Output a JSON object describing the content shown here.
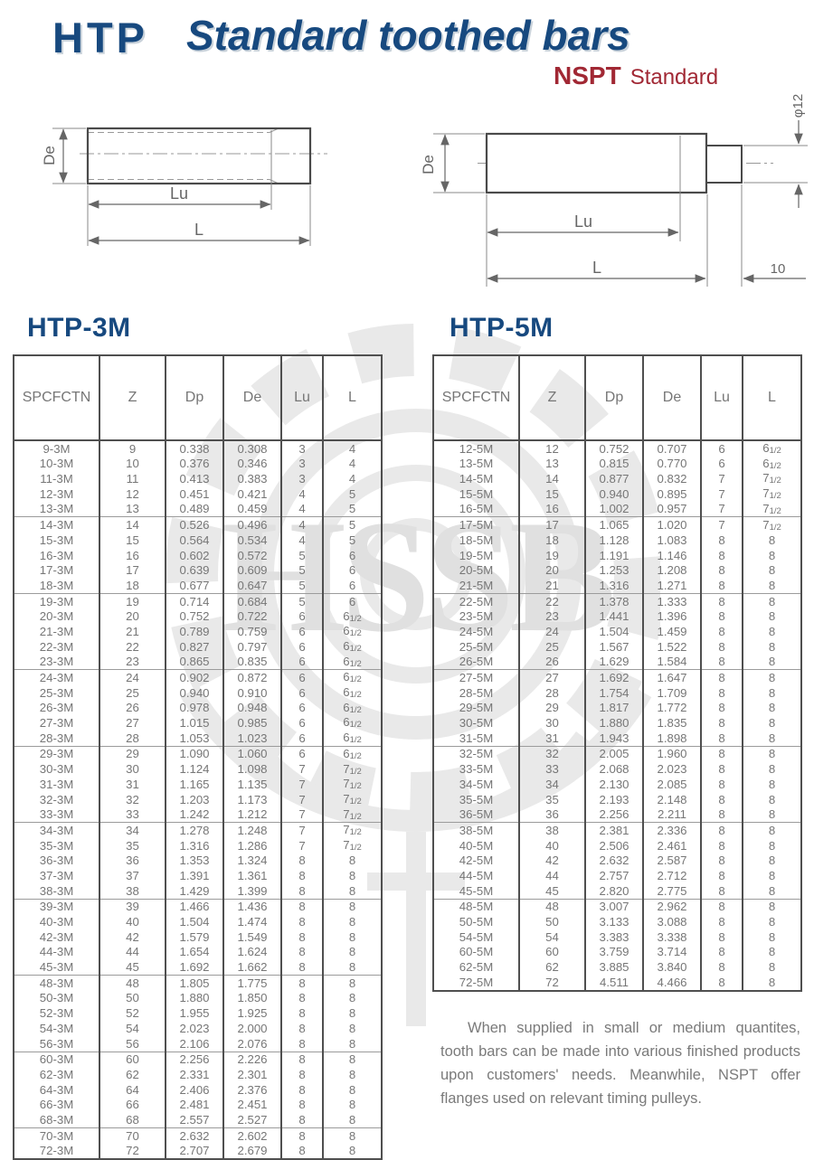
{
  "page": {
    "brand": "HTP",
    "title": "Standard toothed bars",
    "standard_brand": "NSPT",
    "standard_label": "Standard"
  },
  "drawings": {
    "left": {
      "de": "De",
      "lu": "Lu",
      "l": "L"
    },
    "right": {
      "de": "De",
      "lu": "Lu",
      "l": "L",
      "diameter": "φ12",
      "tail": "10"
    }
  },
  "tables": [
    {
      "title": "HTP-3M",
      "headers": [
        "SPCFCTN",
        "Z",
        "Dp",
        "De",
        "Lu",
        "L"
      ],
      "groups": [
        [
          [
            "9-3M",
            "9",
            "0.338",
            "0.308",
            "3",
            "4"
          ],
          [
            "10-3M",
            "10",
            "0.376",
            "0.346",
            "3",
            "4"
          ],
          [
            "11-3M",
            "11",
            "0.413",
            "0.383",
            "3",
            "4"
          ],
          [
            "12-3M",
            "12",
            "0.451",
            "0.421",
            "4",
            "5"
          ],
          [
            "13-3M",
            "13",
            "0.489",
            "0.459",
            "4",
            "5"
          ]
        ],
        [
          [
            "14-3M",
            "14",
            "0.526",
            "0.496",
            "4",
            "5"
          ],
          [
            "15-3M",
            "15",
            "0.564",
            "0.534",
            "4",
            "5"
          ],
          [
            "16-3M",
            "16",
            "0.602",
            "0.572",
            "5",
            "6"
          ],
          [
            "17-3M",
            "17",
            "0.639",
            "0.609",
            "5",
            "6"
          ],
          [
            "18-3M",
            "18",
            "0.677",
            "0.647",
            "5",
            "6"
          ]
        ],
        [
          [
            "19-3M",
            "19",
            "0.714",
            "0.684",
            "5",
            "6"
          ],
          [
            "20-3M",
            "20",
            "0.752",
            "0.722",
            "6",
            "6 1/2"
          ],
          [
            "21-3M",
            "21",
            "0.789",
            "0.759",
            "6",
            "6 1/2"
          ],
          [
            "22-3M",
            "22",
            "0.827",
            "0.797",
            "6",
            "6 1/2"
          ],
          [
            "23-3M",
            "23",
            "0.865",
            "0.835",
            "6",
            "6 1/2"
          ]
        ],
        [
          [
            "24-3M",
            "24",
            "0.902",
            "0.872",
            "6",
            "6 1/2"
          ],
          [
            "25-3M",
            "25",
            "0.940",
            "0.910",
            "6",
            "6 1/2"
          ],
          [
            "26-3M",
            "26",
            "0.978",
            "0.948",
            "6",
            "6 1/2"
          ],
          [
            "27-3M",
            "27",
            "1.015",
            "0.985",
            "6",
            "6 1/2"
          ],
          [
            "28-3M",
            "28",
            "1.053",
            "1.023",
            "6",
            "6 1/2"
          ]
        ],
        [
          [
            "29-3M",
            "29",
            "1.090",
            "1.060",
            "6",
            "6 1/2"
          ],
          [
            "30-3M",
            "30",
            "1.124",
            "1.098",
            "7",
            "7 1/2"
          ],
          [
            "31-3M",
            "31",
            "1.165",
            "1.135",
            "7",
            "7 1/2"
          ],
          [
            "32-3M",
            "32",
            "1.203",
            "1.173",
            "7",
            "7 1/2"
          ],
          [
            "33-3M",
            "33",
            "1.242",
            "1.212",
            "7",
            "7 1/2"
          ]
        ],
        [
          [
            "34-3M",
            "34",
            "1.278",
            "1.248",
            "7",
            "7 1/2"
          ],
          [
            "35-3M",
            "35",
            "1.316",
            "1.286",
            "7",
            "7 1/2"
          ],
          [
            "36-3M",
            "36",
            "1.353",
            "1.324",
            "8",
            "8"
          ],
          [
            "37-3M",
            "37",
            "1.391",
            "1.361",
            "8",
            "8"
          ],
          [
            "38-3M",
            "38",
            "1.429",
            "1.399",
            "8",
            "8"
          ]
        ],
        [
          [
            "39-3M",
            "39",
            "1.466",
            "1.436",
            "8",
            "8"
          ],
          [
            "40-3M",
            "40",
            "1.504",
            "1.474",
            "8",
            "8"
          ],
          [
            "42-3M",
            "42",
            "1.579",
            "1.549",
            "8",
            "8"
          ],
          [
            "44-3M",
            "44",
            "1.654",
            "1.624",
            "8",
            "8"
          ],
          [
            "45-3M",
            "45",
            "1.692",
            "1.662",
            "8",
            "8"
          ]
        ],
        [
          [
            "48-3M",
            "48",
            "1.805",
            "1.775",
            "8",
            "8"
          ],
          [
            "50-3M",
            "50",
            "1.880",
            "1.850",
            "8",
            "8"
          ],
          [
            "52-3M",
            "52",
            "1.955",
            "1.925",
            "8",
            "8"
          ],
          [
            "54-3M",
            "54",
            "2.023",
            "2.000",
            "8",
            "8"
          ],
          [
            "56-3M",
            "56",
            "2.106",
            "2.076",
            "8",
            "8"
          ]
        ],
        [
          [
            "60-3M",
            "60",
            "2.256",
            "2.226",
            "8",
            "8"
          ],
          [
            "62-3M",
            "62",
            "2.331",
            "2.301",
            "8",
            "8"
          ],
          [
            "64-3M",
            "64",
            "2.406",
            "2.376",
            "8",
            "8"
          ],
          [
            "66-3M",
            "66",
            "2.481",
            "2.451",
            "8",
            "8"
          ],
          [
            "68-3M",
            "68",
            "2.557",
            "2.527",
            "8",
            "8"
          ]
        ],
        [
          [
            "70-3M",
            "70",
            "2.632",
            "2.602",
            "8",
            "8"
          ],
          [
            "72-3M",
            "72",
            "2.707",
            "2.679",
            "8",
            "8"
          ]
        ]
      ]
    },
    {
      "title": "HTP-5M",
      "headers": [
        "SPCFCTN",
        "Z",
        "Dp",
        "De",
        "Lu",
        "L"
      ],
      "groups": [
        [
          [
            "12-5M",
            "12",
            "0.752",
            "0.707",
            "6",
            "6 1/2"
          ],
          [
            "13-5M",
            "13",
            "0.815",
            "0.770",
            "6",
            "6 1/2"
          ],
          [
            "14-5M",
            "14",
            "0.877",
            "0.832",
            "7",
            "7 1/2"
          ],
          [
            "15-5M",
            "15",
            "0.940",
            "0.895",
            "7",
            "7 1/2"
          ],
          [
            "16-5M",
            "16",
            "1.002",
            "0.957",
            "7",
            "7 1/2"
          ]
        ],
        [
          [
            "17-5M",
            "17",
            "1.065",
            "1.020",
            "7",
            "7 1/2"
          ],
          [
            "18-5M",
            "18",
            "1.128",
            "1.083",
            "8",
            "8"
          ],
          [
            "19-5M",
            "19",
            "1.191",
            "1.146",
            "8",
            "8"
          ],
          [
            "20-5M",
            "20",
            "1.253",
            "1.208",
            "8",
            "8"
          ],
          [
            "21-5M",
            "21",
            "1.316",
            "1.271",
            "8",
            "8"
          ]
        ],
        [
          [
            "22-5M",
            "22",
            "1.378",
            "1.333",
            "8",
            "8"
          ],
          [
            "23-5M",
            "23",
            "1.441",
            "1.396",
            "8",
            "8"
          ],
          [
            "24-5M",
            "24",
            "1.504",
            "1.459",
            "8",
            "8"
          ],
          [
            "25-5M",
            "25",
            "1.567",
            "1.522",
            "8",
            "8"
          ],
          [
            "26-5M",
            "26",
            "1.629",
            "1.584",
            "8",
            "8"
          ]
        ],
        [
          [
            "27-5M",
            "27",
            "1.692",
            "1.647",
            "8",
            "8"
          ],
          [
            "28-5M",
            "28",
            "1.754",
            "1.709",
            "8",
            "8"
          ],
          [
            "29-5M",
            "29",
            "1.817",
            "1.772",
            "8",
            "8"
          ],
          [
            "30-5M",
            "30",
            "1.880",
            "1.835",
            "8",
            "8"
          ],
          [
            "31-5M",
            "31",
            "1.943",
            "1.898",
            "8",
            "8"
          ]
        ],
        [
          [
            "32-5M",
            "32",
            "2.005",
            "1.960",
            "8",
            "8"
          ],
          [
            "33-5M",
            "33",
            "2.068",
            "2.023",
            "8",
            "8"
          ],
          [
            "34-5M",
            "34",
            "2.130",
            "2.085",
            "8",
            "8"
          ],
          [
            "35-5M",
            "35",
            "2.193",
            "2.148",
            "8",
            "8"
          ],
          [
            "36-5M",
            "36",
            "2.256",
            "2.211",
            "8",
            "8"
          ]
        ],
        [
          [
            "38-5M",
            "38",
            "2.381",
            "2.336",
            "8",
            "8"
          ],
          [
            "40-5M",
            "40",
            "2.506",
            "2.461",
            "8",
            "8"
          ],
          [
            "42-5M",
            "42",
            "2.632",
            "2.587",
            "8",
            "8"
          ],
          [
            "44-5M",
            "44",
            "2.757",
            "2.712",
            "8",
            "8"
          ],
          [
            "45-5M",
            "45",
            "2.820",
            "2.775",
            "8",
            "8"
          ]
        ],
        [
          [
            "48-5M",
            "48",
            "3.007",
            "2.962",
            "8",
            "8"
          ],
          [
            "50-5M",
            "50",
            "3.133",
            "3.088",
            "8",
            "8"
          ],
          [
            "54-5M",
            "54",
            "3.383",
            "3.338",
            "8",
            "8"
          ],
          [
            "60-5M",
            "60",
            "3.759",
            "3.714",
            "8",
            "8"
          ],
          [
            "62-5M",
            "62",
            "3.885",
            "3.840",
            "8",
            "8"
          ],
          [
            "72-5M",
            "72",
            "4.511",
            "4.466",
            "8",
            "8"
          ]
        ]
      ]
    }
  ],
  "note": "When supplied in small or medium quantites, tooth bars can be made into various finished products upon customers' needs. Meanwhile, NSPT offer flanges used on relevant timing pulleys.",
  "watermark_text": "HSSB",
  "colors": {
    "heading_blue": "#17497f",
    "brand_red": "#a12834",
    "table_text": "#767676",
    "table_line": "#4f4f4f",
    "group_line": "#9b9b9b",
    "watermark": "#e9e9e9"
  }
}
